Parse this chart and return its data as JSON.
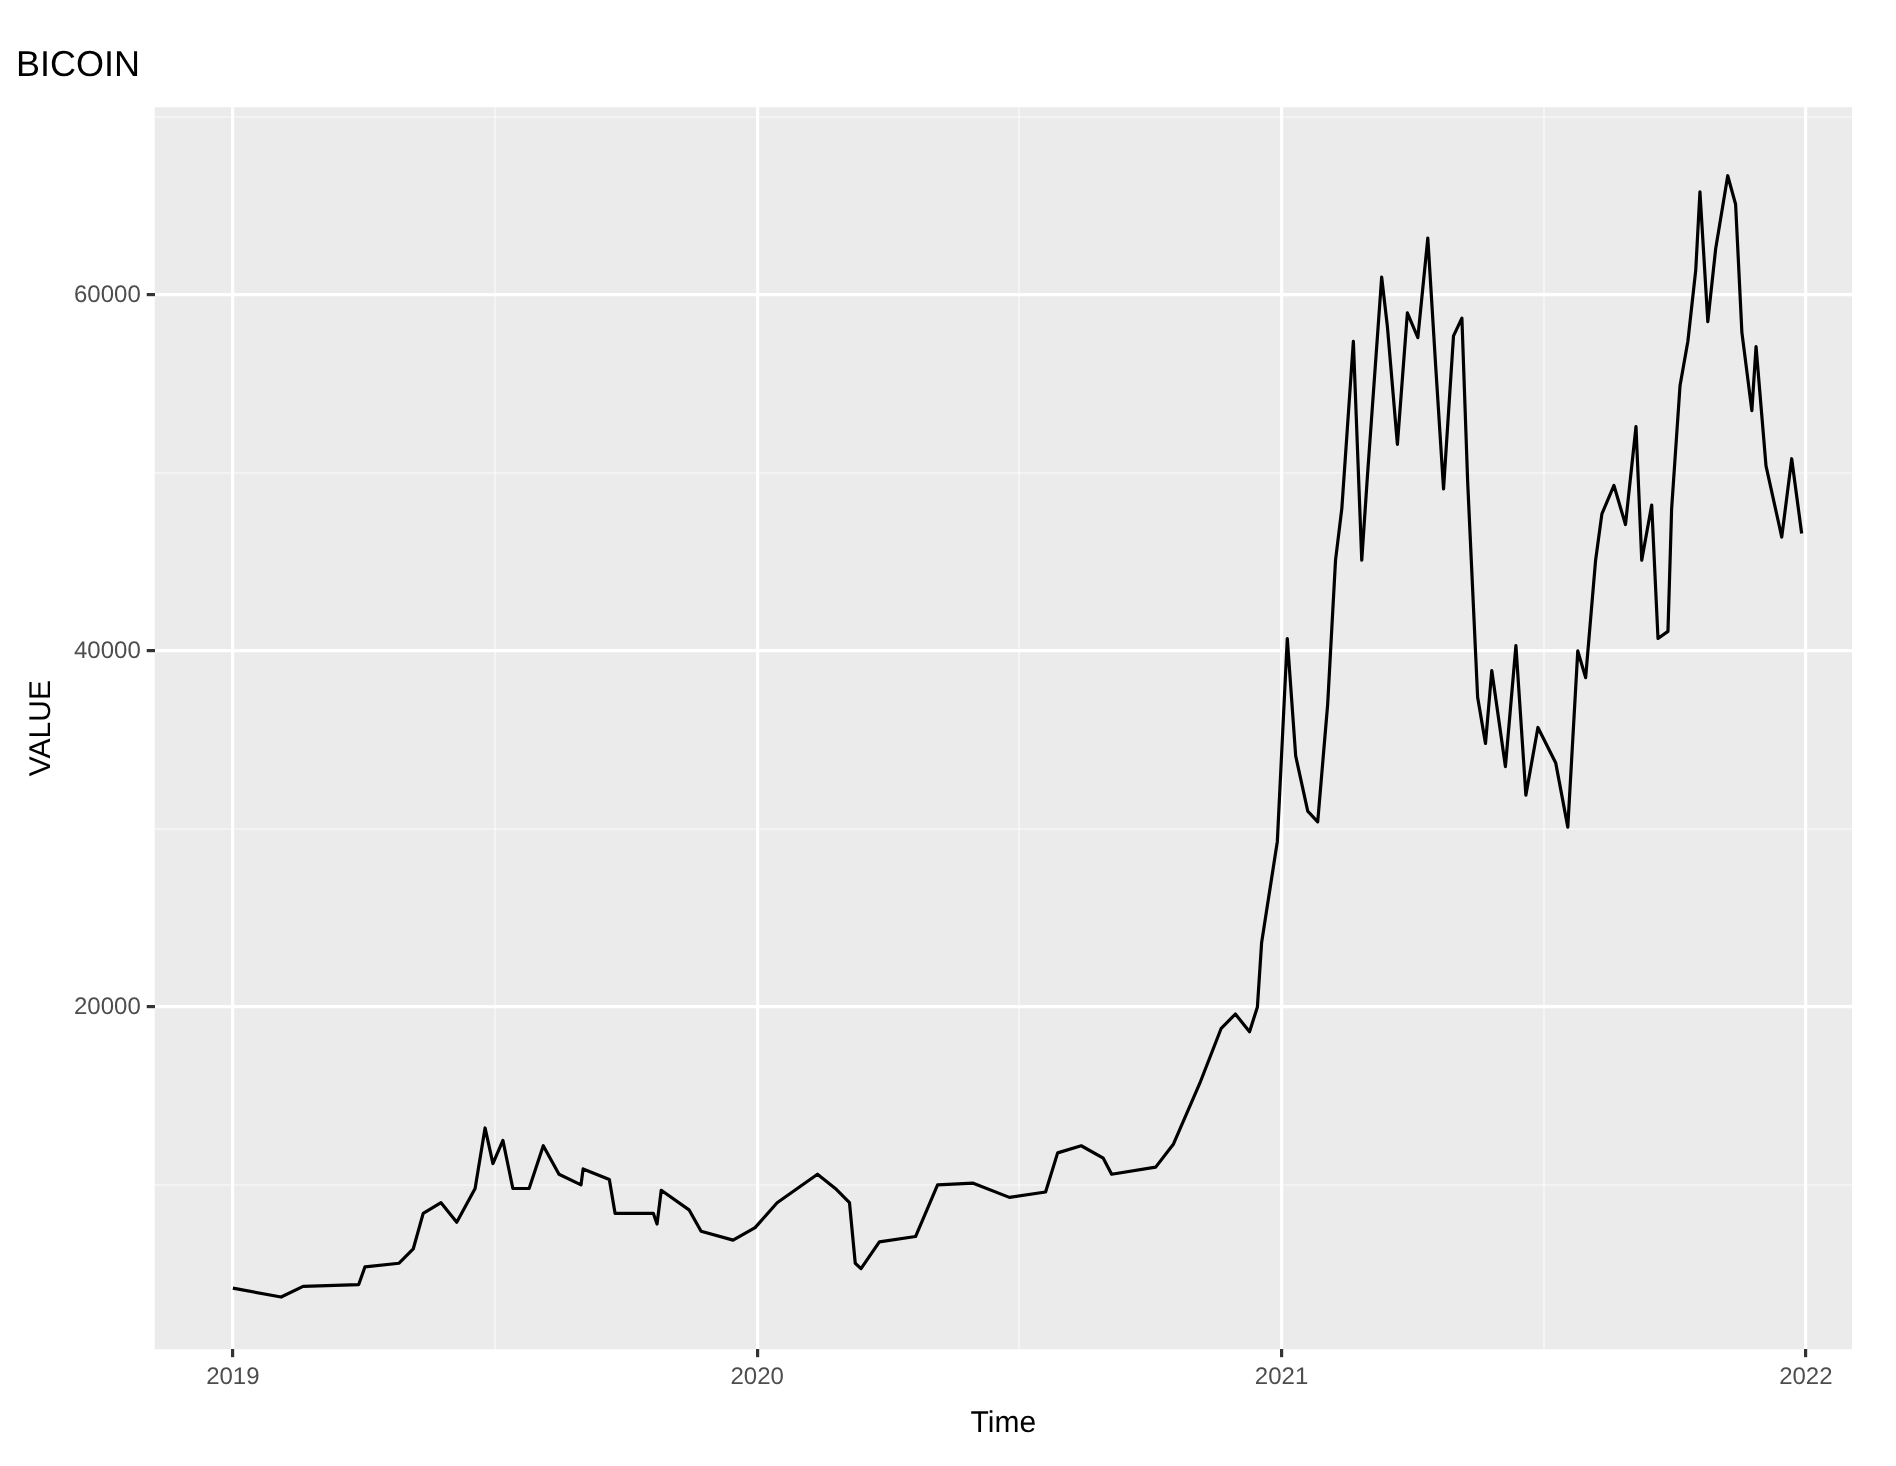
{
  "chart_data": {
    "type": "line",
    "title": "BICOIN",
    "xlabel": "Time",
    "ylabel": "VALUE",
    "x": [
      2019.0,
      2019.092,
      2019.134,
      2019.24,
      2019.252,
      2019.317,
      2019.344,
      2019.363,
      2019.397,
      2019.427,
      2019.462,
      2019.481,
      2019.496,
      2019.515,
      2019.534,
      2019.565,
      2019.592,
      2019.622,
      2019.664,
      2019.668,
      2019.718,
      2019.729,
      2019.802,
      2019.809,
      2019.817,
      2019.87,
      2019.893,
      2019.954,
      2019.996,
      2020.038,
      2020.115,
      2020.149,
      2020.176,
      2020.187,
      2020.198,
      2020.233,
      2020.302,
      2020.344,
      2020.412,
      2020.481,
      2020.55,
      2020.573,
      2020.618,
      2020.66,
      2020.676,
      2020.76,
      2020.794,
      2020.844,
      2020.885,
      2020.912,
      2020.939,
      2020.954,
      2020.962,
      2020.992,
      2021.011,
      2021.027,
      2021.05,
      2021.069,
      2021.088,
      2021.103,
      2021.115,
      2021.137,
      2021.153,
      2021.164,
      2021.191,
      2021.202,
      2021.221,
      2021.24,
      2021.26,
      2021.279,
      2021.294,
      2021.309,
      2021.328,
      2021.344,
      2021.355,
      2021.374,
      2021.389,
      2021.401,
      2021.427,
      2021.447,
      2021.466,
      2021.489,
      2021.523,
      2021.546,
      2021.565,
      2021.58,
      2021.599,
      2021.611,
      2021.634,
      2021.656,
      2021.676,
      2021.687,
      2021.706,
      2021.718,
      2021.737,
      2021.744,
      2021.76,
      2021.775,
      2021.79,
      2021.798,
      2021.813,
      2021.828,
      2021.851,
      2021.866,
      2021.878,
      2021.897,
      2021.905,
      2021.924,
      2021.954,
      2021.973,
      2021.992
    ],
    "series": [
      {
        "color": "#000000",
        "values": [
          4200,
          3700,
          4300,
          4400,
          5400,
          5600,
          6400,
          8400,
          9000,
          7900,
          9800,
          13200,
          11200,
          12500,
          9800,
          9800,
          12200,
          10600,
          10000,
          10900,
          10300,
          8400,
          8400,
          7800,
          9700,
          8600,
          7400,
          6900,
          7600,
          9000,
          10600,
          9800,
          9000,
          5600,
          5300,
          6800,
          7100,
          10000,
          10100,
          9300,
          9600,
          11800,
          12200,
          11500,
          10600,
          11000,
          12300,
          15700,
          18800,
          19600,
          18600,
          20000,
          23600,
          29300,
          40700,
          34100,
          31000,
          30400,
          37000,
          45100,
          48000,
          57400,
          45100,
          49900,
          61000,
          58200,
          51600,
          59000,
          57600,
          63200,
          56000,
          49100,
          57700,
          58700,
          49500,
          37400,
          34800,
          38900,
          33500,
          40300,
          31900,
          35700,
          33700,
          30100,
          40000,
          38500,
          45100,
          47700,
          49300,
          47100,
          52600,
          45100,
          48200,
          40700,
          41100,
          48000,
          54900,
          57400,
          61400,
          65800,
          58500,
          62600,
          66700,
          65100,
          57900,
          53500,
          57100,
          50400,
          46400,
          50800,
          46600
        ]
      }
    ],
    "xlim": [
      2018.851,
      2022.088
    ],
    "xticks": [
      2019,
      {
        "value": 2019.5,
        "label": null
      },
      2020,
      {
        "value": 2020.5,
        "label": null
      },
      2021,
      {
        "value": 2021.5,
        "label": null
      },
      2022
    ],
    "ylim": [
      770,
      70550
    ],
    "yticks": [
      {
        "value": 10000,
        "label": null
      },
      20000,
      {
        "value": 30000,
        "label": null
      },
      40000,
      {
        "value": 50000,
        "label": null
      },
      60000,
      {
        "value": 70000,
        "label": null
      }
    ],
    "grid": true,
    "legend": false,
    "marker": "none",
    "line_style": "solid"
  }
}
